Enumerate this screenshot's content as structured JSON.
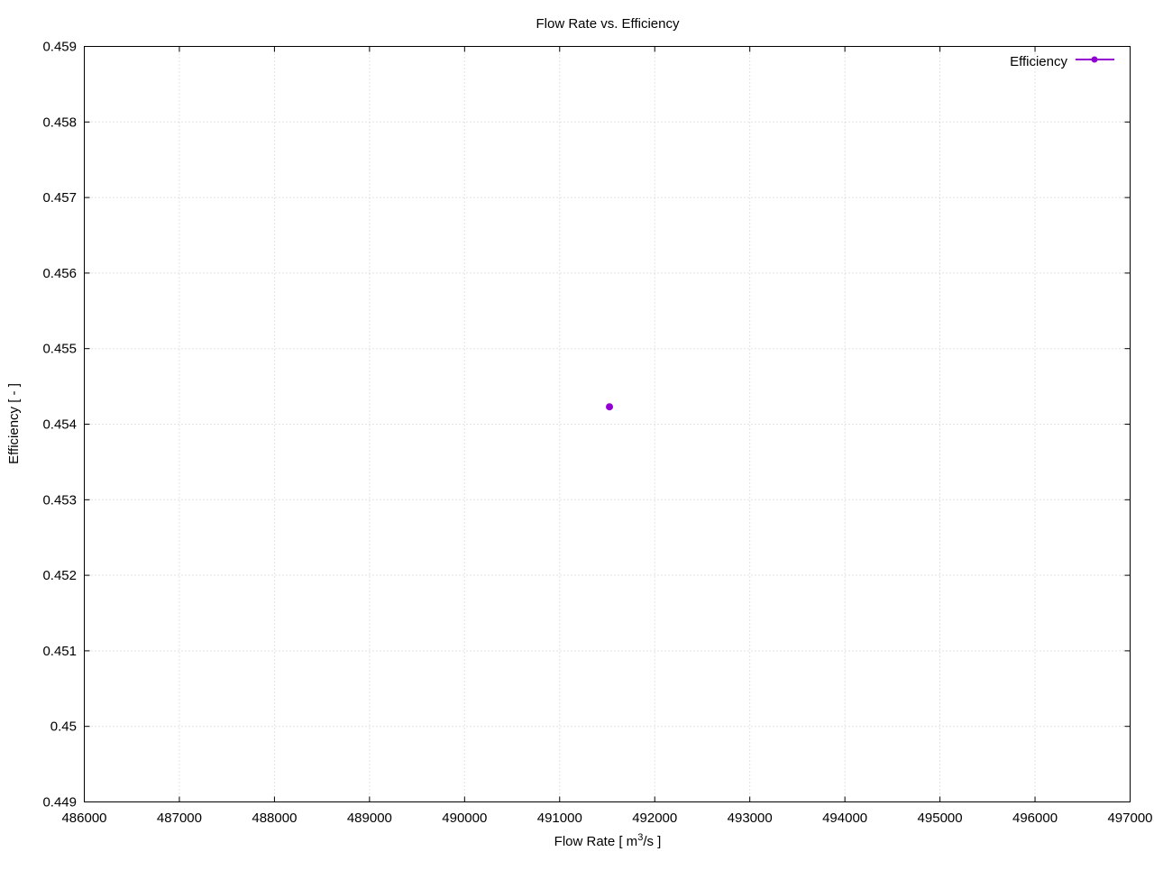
{
  "chart_data": {
    "type": "scatter",
    "title": "Flow Rate  vs. Efficiency",
    "xlabel_prefix": "Flow Rate [ m",
    "xlabel_sup": "3",
    "xlabel_suffix": "/s ]",
    "ylabel": "Efficiency [ - ]",
    "xlim": [
      486000,
      497000
    ],
    "ylim": [
      0.449,
      0.459
    ],
    "xticks": [
      "486000",
      "487000",
      "488000",
      "489000",
      "490000",
      "491000",
      "492000",
      "493000",
      "494000",
      "495000",
      "496000",
      "497000"
    ],
    "yticks": [
      "0.449",
      "0.45",
      "0.451",
      "0.452",
      "0.453",
      "0.454",
      "0.455",
      "0.456",
      "0.457",
      "0.458",
      "0.459"
    ],
    "grid": true,
    "legend_position": "top-right",
    "series": [
      {
        "name": "Efficiency",
        "color": "#9400d3",
        "style": "linespoints",
        "x": [
          491524
        ],
        "y": [
          0.45423
        ]
      }
    ]
  }
}
